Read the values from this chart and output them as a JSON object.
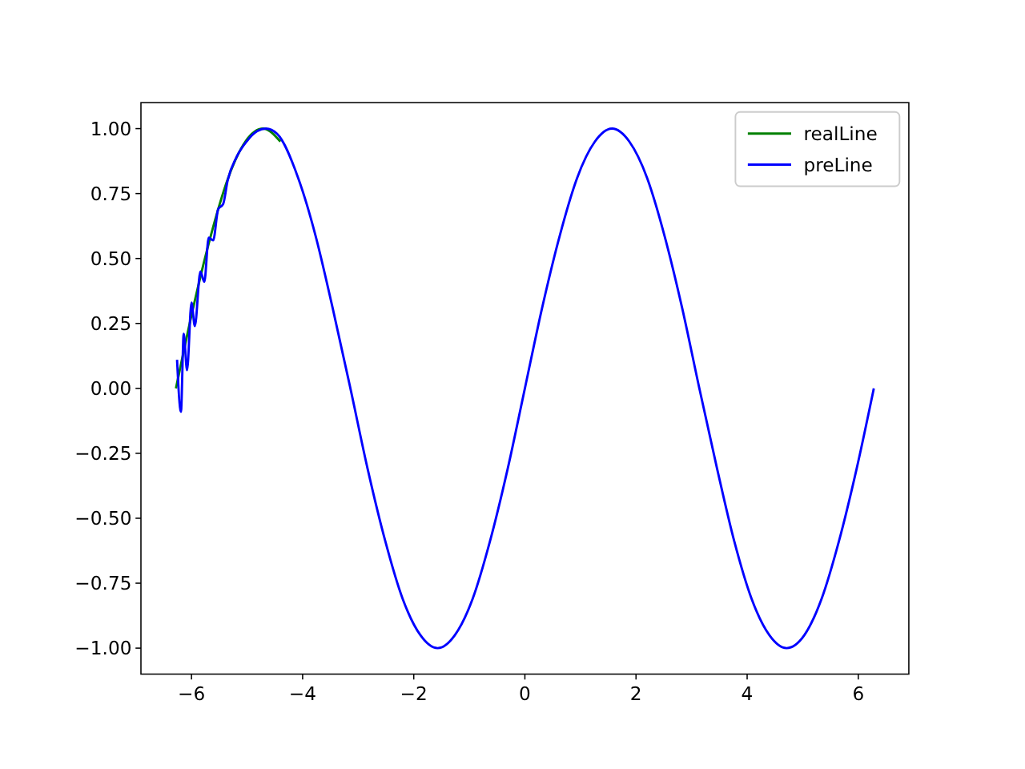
{
  "chart_data": {
    "type": "line",
    "xlim": [
      -6.91,
      6.91
    ],
    "ylim": [
      -1.1,
      1.1
    ],
    "xticks": [
      -6,
      -4,
      -2,
      0,
      2,
      4,
      6
    ],
    "yticks": [
      {
        "value": -1,
        "label": "−1.00"
      },
      {
        "value": -0.75,
        "label": "−0.75"
      },
      {
        "value": -0.5,
        "label": "−0.50"
      },
      {
        "value": -0.25,
        "label": "−0.25"
      },
      {
        "value": 0,
        "label": "0.00"
      },
      {
        "value": 0.25,
        "label": "0.25"
      },
      {
        "value": 0.5,
        "label": "0.50"
      },
      {
        "value": 0.75,
        "label": "0.75"
      },
      {
        "value": 1,
        "label": "1.00"
      }
    ],
    "legend": "top right",
    "grid": false,
    "series": [
      {
        "name": "realLine",
        "color": "#008000",
        "x": [
          -6.28,
          -5.97,
          -5.65,
          -5.34,
          -5.03,
          -4.71,
          -4.4
        ],
        "values": [
          0,
          0.31,
          0.59,
          0.81,
          0.95,
          1,
          0.95
        ]
      },
      {
        "name": "preLine",
        "color": "#0000ff",
        "x": [
          -6.26,
          -6.19,
          -6.14,
          -6.08,
          -6.0,
          -5.94,
          -5.84,
          -5.77,
          -5.69,
          -5.61,
          -5.52,
          -5.43,
          -5.35,
          -5.19,
          -5.01,
          -4.82,
          -4.66,
          -4.46,
          -4.08,
          -3.77,
          -3.46,
          -3.14,
          -2.83,
          -2.51,
          -2.2,
          -1.88,
          -1.57,
          -1.26,
          -0.94,
          -0.63,
          -0.31,
          0,
          0.31,
          0.63,
          0.94,
          1.26,
          1.57,
          1.88,
          2.2,
          2.51,
          2.83,
          3.14,
          3.46,
          3.77,
          4.08,
          4.4,
          4.71,
          5.03,
          5.34,
          5.65,
          5.97,
          6.28
        ],
        "values": [
          0.11,
          -0.09,
          0.21,
          0.07,
          0.33,
          0.24,
          0.45,
          0.41,
          0.58,
          0.57,
          0.69,
          0.71,
          0.8,
          0.89,
          0.95,
          0.99,
          1,
          0.98,
          0.81,
          0.59,
          0.31,
          0,
          -0.31,
          -0.59,
          -0.81,
          -0.95,
          -1,
          -0.95,
          -0.81,
          -0.59,
          -0.31,
          0,
          0.31,
          0.59,
          0.81,
          0.95,
          1,
          0.95,
          0.81,
          0.59,
          0.31,
          0,
          -0.31,
          -0.59,
          -0.81,
          -0.95,
          -1,
          -0.95,
          -0.81,
          -0.59,
          -0.31,
          0
        ]
      }
    ]
  }
}
